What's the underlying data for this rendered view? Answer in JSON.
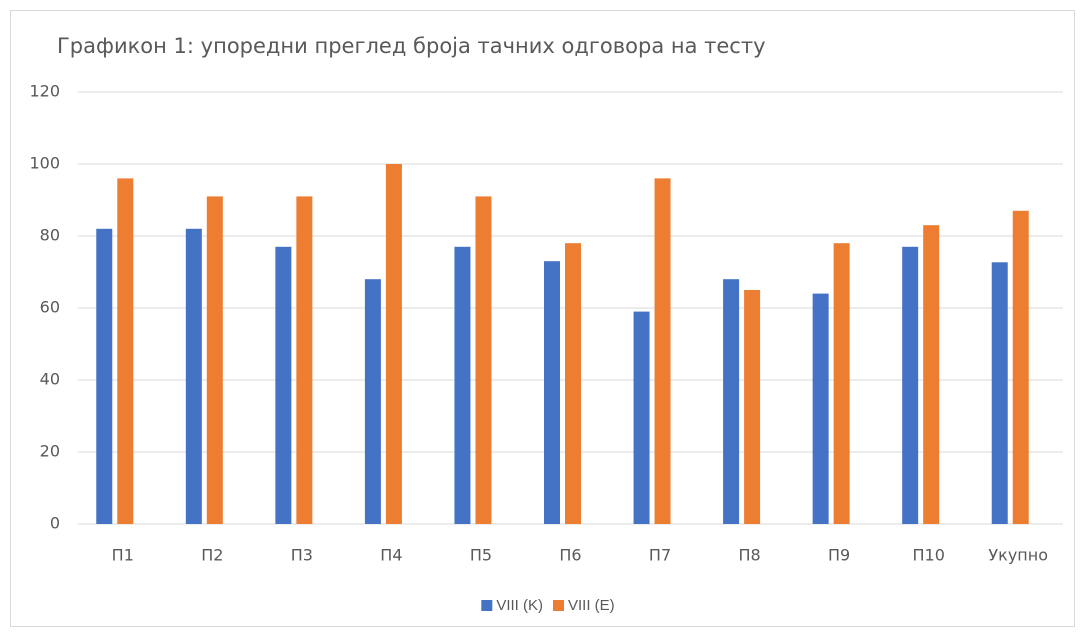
{
  "chart_data": {
    "type": "bar",
    "title": "Графикон 1: упоредни преглед броја тачних одговора на тесту",
    "categories": [
      "П1",
      "П2",
      "П3",
      "П4",
      "П5",
      "П6",
      "П7",
      "П8",
      "П9",
      "П10",
      "Укупно"
    ],
    "series": [
      {
        "name": "VIII (K)",
        "color": "#4472c4",
        "values": [
          82,
          82,
          77,
          68,
          77,
          73,
          59,
          68,
          64,
          77,
          72.7
        ]
      },
      {
        "name": "VIII (E)",
        "color": "#ed7d31",
        "values": [
          96,
          91,
          91,
          100,
          91,
          78,
          96,
          65,
          78,
          83,
          87
        ]
      }
    ],
    "ylim": [
      0,
      120
    ],
    "yticks": [
      0,
      20,
      40,
      60,
      80,
      100,
      120
    ],
    "grid": true,
    "legend": "bottom"
  }
}
